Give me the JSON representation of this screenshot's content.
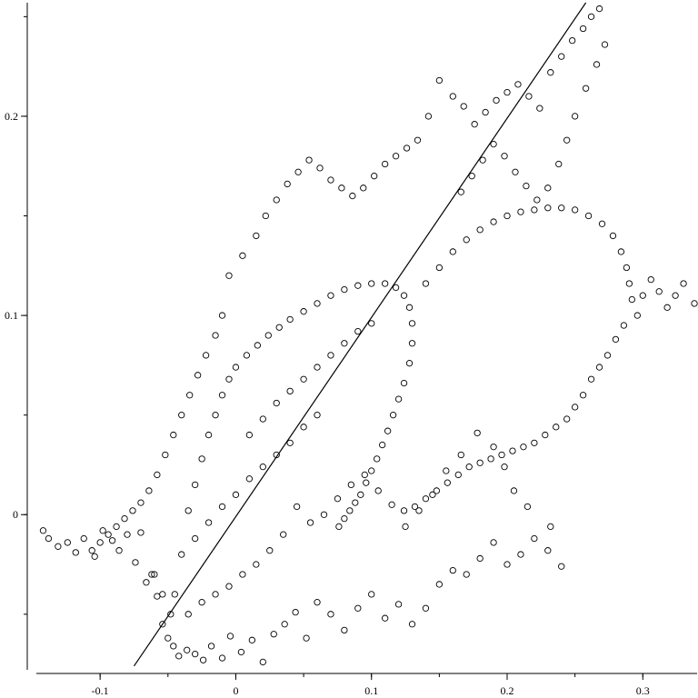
{
  "chart_data": {
    "type": "scatter",
    "title": "",
    "xlabel": "",
    "ylabel": "",
    "xlim": [
      -0.147,
      0.34
    ],
    "ylim": [
      -0.077,
      0.257
    ],
    "x_ticks": [
      {
        "value": -0.1,
        "label": "-0.1"
      },
      {
        "value": 0,
        "label": "0"
      },
      {
        "value": 0.1,
        "label": "0.1"
      },
      {
        "value": 0.2,
        "label": "0.2"
      },
      {
        "value": 0.3,
        "label": "0.3"
      }
    ],
    "y_ticks": [
      {
        "value": 0,
        "label": "0"
      },
      {
        "value": 0.1,
        "label": "0.1"
      },
      {
        "value": 0.2,
        "label": "0.2"
      }
    ],
    "minor_tick_step": 0.05,
    "grid": false,
    "legend": "none",
    "marker": "open-circle",
    "marker_color": "#000000",
    "points": [
      [
        -0.142,
        -0.008
      ],
      [
        -0.138,
        -0.012
      ],
      [
        -0.131,
        -0.016
      ],
      [
        -0.124,
        -0.014
      ],
      [
        -0.118,
        -0.019
      ],
      [
        -0.112,
        -0.012
      ],
      [
        -0.104,
        -0.021
      ],
      [
        -0.098,
        -0.008
      ],
      [
        -0.091,
        -0.013
      ],
      [
        -0.086,
        -0.018
      ],
      [
        -0.08,
        -0.01
      ],
      [
        -0.074,
        -0.024
      ],
      [
        -0.07,
        -0.009
      ],
      [
        -0.066,
        -0.034
      ],
      [
        -0.062,
        -0.03
      ],
      [
        -0.058,
        -0.041
      ],
      [
        -0.054,
        -0.055
      ],
      [
        -0.05,
        -0.062
      ],
      [
        -0.046,
        -0.066
      ],
      [
        -0.042,
        -0.071
      ],
      [
        -0.036,
        -0.068
      ],
      [
        -0.03,
        -0.07
      ],
      [
        -0.024,
        -0.073
      ],
      [
        -0.018,
        -0.066
      ],
      [
        -0.01,
        -0.072
      ],
      [
        -0.004,
        -0.061
      ],
      [
        0.004,
        -0.069
      ],
      [
        0.012,
        -0.063
      ],
      [
        0.02,
        -0.074
      ],
      [
        0.028,
        -0.06
      ],
      [
        0.036,
        -0.055
      ],
      [
        0.044,
        -0.049
      ],
      [
        0.052,
        -0.062
      ],
      [
        0.06,
        -0.044
      ],
      [
        0.07,
        -0.05
      ],
      [
        0.08,
        -0.058
      ],
      [
        0.09,
        -0.047
      ],
      [
        0.1,
        -0.04
      ],
      [
        0.11,
        -0.052
      ],
      [
        0.12,
        -0.045
      ],
      [
        0.13,
        -0.055
      ],
      [
        0.14,
        -0.047
      ],
      [
        0.15,
        -0.035
      ],
      [
        0.16,
        -0.028
      ],
      [
        0.17,
        -0.03
      ],
      [
        0.18,
        -0.022
      ],
      [
        0.19,
        -0.014
      ],
      [
        0.2,
        -0.025
      ],
      [
        0.21,
        -0.02
      ],
      [
        0.22,
        -0.012
      ],
      [
        0.23,
        -0.018
      ],
      [
        0.24,
        -0.026
      ],
      [
        0.232,
        -0.006
      ],
      [
        0.215,
        0.004
      ],
      [
        0.205,
        0.012
      ],
      [
        0.198,
        0.024
      ],
      [
        0.19,
        0.034
      ],
      [
        0.178,
        0.041
      ],
      [
        0.166,
        0.03
      ],
      [
        0.155,
        0.022
      ],
      [
        0.145,
        0.01
      ],
      [
        0.135,
        0.002
      ],
      [
        0.125,
        -0.006
      ],
      [
        0.115,
        0.005
      ],
      [
        0.105,
        0.012
      ],
      [
        0.095,
        0.02
      ],
      [
        0.085,
        0.015
      ],
      [
        0.075,
        0.008
      ],
      [
        0.065,
        0.0
      ],
      [
        0.055,
        -0.004
      ],
      [
        0.045,
        0.004
      ],
      [
        0.035,
        -0.01
      ],
      [
        0.025,
        -0.018
      ],
      [
        0.015,
        -0.025
      ],
      [
        0.005,
        -0.03
      ],
      [
        -0.005,
        -0.036
      ],
      [
        -0.015,
        -0.04
      ],
      [
        -0.025,
        -0.044
      ],
      [
        -0.035,
        -0.05
      ],
      [
        -0.045,
        -0.04
      ],
      [
        -0.04,
        -0.02
      ],
      [
        -0.035,
        0.002
      ],
      [
        -0.03,
        0.015
      ],
      [
        -0.025,
        0.028
      ],
      [
        -0.02,
        0.04
      ],
      [
        -0.015,
        0.05
      ],
      [
        -0.01,
        0.06
      ],
      [
        -0.005,
        0.068
      ],
      [
        0.0,
        0.074
      ],
      [
        0.008,
        0.08
      ],
      [
        0.016,
        0.085
      ],
      [
        0.024,
        0.09
      ],
      [
        0.032,
        0.094
      ],
      [
        0.04,
        0.098
      ],
      [
        0.05,
        0.102
      ],
      [
        0.06,
        0.106
      ],
      [
        0.07,
        0.11
      ],
      [
        0.08,
        0.113
      ],
      [
        0.09,
        0.115
      ],
      [
        0.1,
        0.116
      ],
      [
        0.11,
        0.116
      ],
      [
        0.118,
        0.114
      ],
      [
        0.124,
        0.11
      ],
      [
        0.128,
        0.104
      ],
      [
        0.13,
        0.096
      ],
      [
        0.13,
        0.086
      ],
      [
        0.128,
        0.076
      ],
      [
        0.124,
        0.066
      ],
      [
        0.12,
        0.058
      ],
      [
        0.116,
        0.05
      ],
      [
        0.112,
        0.042
      ],
      [
        0.108,
        0.035
      ],
      [
        0.104,
        0.028
      ],
      [
        0.1,
        0.022
      ],
      [
        0.096,
        0.016
      ],
      [
        0.092,
        0.01
      ],
      [
        0.088,
        0.006
      ],
      [
        0.084,
        0.002
      ],
      [
        0.08,
        -0.002
      ],
      [
        0.076,
        -0.006
      ],
      [
        0.14,
        0.116
      ],
      [
        0.15,
        0.124
      ],
      [
        0.16,
        0.132
      ],
      [
        0.17,
        0.138
      ],
      [
        0.18,
        0.143
      ],
      [
        0.19,
        0.147
      ],
      [
        0.2,
        0.15
      ],
      [
        0.21,
        0.152
      ],
      [
        0.22,
        0.153
      ],
      [
        0.23,
        0.154
      ],
      [
        0.24,
        0.154
      ],
      [
        0.25,
        0.153
      ],
      [
        0.26,
        0.15
      ],
      [
        0.27,
        0.146
      ],
      [
        0.278,
        0.14
      ],
      [
        0.284,
        0.132
      ],
      [
        0.288,
        0.124
      ],
      [
        0.29,
        0.116
      ],
      [
        0.292,
        0.108
      ],
      [
        0.296,
        0.1
      ],
      [
        0.3,
        0.11
      ],
      [
        0.306,
        0.118
      ],
      [
        0.312,
        0.112
      ],
      [
        0.318,
        0.104
      ],
      [
        0.324,
        0.11
      ],
      [
        0.33,
        0.116
      ],
      [
        0.338,
        0.106
      ],
      [
        0.286,
        0.095
      ],
      [
        0.28,
        0.088
      ],
      [
        0.274,
        0.08
      ],
      [
        0.268,
        0.074
      ],
      [
        0.262,
        0.068
      ],
      [
        0.256,
        0.06
      ],
      [
        0.25,
        0.054
      ],
      [
        0.244,
        0.048
      ],
      [
        0.236,
        0.044
      ],
      [
        0.228,
        0.04
      ],
      [
        0.22,
        0.036
      ],
      [
        0.212,
        0.034
      ],
      [
        0.204,
        0.032
      ],
      [
        0.196,
        0.03
      ],
      [
        0.188,
        0.028
      ],
      [
        0.18,
        0.026
      ],
      [
        0.172,
        0.024
      ],
      [
        0.164,
        0.02
      ],
      [
        0.156,
        0.016
      ],
      [
        0.148,
        0.012
      ],
      [
        0.14,
        0.008
      ],
      [
        0.132,
        0.004
      ],
      [
        0.124,
        0.002
      ],
      [
        -0.005,
        0.12
      ],
      [
        0.005,
        0.13
      ],
      [
        0.015,
        0.14
      ],
      [
        0.022,
        0.15
      ],
      [
        0.03,
        0.158
      ],
      [
        0.038,
        0.166
      ],
      [
        0.046,
        0.172
      ],
      [
        0.054,
        0.178
      ],
      [
        0.062,
        0.174
      ],
      [
        0.07,
        0.168
      ],
      [
        0.078,
        0.164
      ],
      [
        0.086,
        0.16
      ],
      [
        0.094,
        0.164
      ],
      [
        0.102,
        0.17
      ],
      [
        0.11,
        0.176
      ],
      [
        0.118,
        0.18
      ],
      [
        0.126,
        0.184
      ],
      [
        0.134,
        0.188
      ],
      [
        0.142,
        0.2
      ],
      [
        0.15,
        0.218
      ],
      [
        0.16,
        0.21
      ],
      [
        0.168,
        0.205
      ],
      [
        0.176,
        0.196
      ],
      [
        0.184,
        0.202
      ],
      [
        0.192,
        0.208
      ],
      [
        0.2,
        0.212
      ],
      [
        0.208,
        0.216
      ],
      [
        0.216,
        0.21
      ],
      [
        0.224,
        0.204
      ],
      [
        0.232,
        0.222
      ],
      [
        0.24,
        0.23
      ],
      [
        0.248,
        0.238
      ],
      [
        0.256,
        0.244
      ],
      [
        0.262,
        0.25
      ],
      [
        0.268,
        0.254
      ],
      [
        0.272,
        0.236
      ],
      [
        0.266,
        0.226
      ],
      [
        0.258,
        0.214
      ],
      [
        0.25,
        0.2
      ],
      [
        0.244,
        0.188
      ],
      [
        0.238,
        0.176
      ],
      [
        0.23,
        0.164
      ],
      [
        0.222,
        0.158
      ],
      [
        0.214,
        0.165
      ],
      [
        0.206,
        0.172
      ],
      [
        0.198,
        0.18
      ],
      [
        0.19,
        0.186
      ],
      [
        0.182,
        0.178
      ],
      [
        0.174,
        0.17
      ],
      [
        0.166,
        0.162
      ],
      [
        -0.01,
        0.1
      ],
      [
        -0.015,
        0.09
      ],
      [
        -0.022,
        0.08
      ],
      [
        -0.028,
        0.07
      ],
      [
        -0.034,
        0.06
      ],
      [
        -0.04,
        0.05
      ],
      [
        -0.046,
        0.04
      ],
      [
        -0.052,
        0.03
      ],
      [
        -0.058,
        0.02
      ],
      [
        -0.064,
        0.012
      ],
      [
        -0.07,
        0.006
      ],
      [
        -0.076,
        0.002
      ],
      [
        -0.082,
        -0.002
      ],
      [
        -0.088,
        -0.006
      ],
      [
        -0.094,
        -0.01
      ],
      [
        -0.1,
        -0.014
      ],
      [
        -0.106,
        -0.018
      ],
      [
        -0.06,
        -0.03
      ],
      [
        -0.054,
        -0.04
      ],
      [
        -0.048,
        -0.05
      ],
      [
        0.01,
        0.04
      ],
      [
        0.02,
        0.048
      ],
      [
        0.03,
        0.056
      ],
      [
        0.04,
        0.062
      ],
      [
        0.05,
        0.068
      ],
      [
        0.06,
        0.074
      ],
      [
        0.07,
        0.08
      ],
      [
        0.08,
        0.086
      ],
      [
        0.09,
        0.092
      ],
      [
        0.1,
        0.096
      ],
      [
        0.0,
        0.01
      ],
      [
        0.01,
        0.018
      ],
      [
        0.02,
        0.024
      ],
      [
        0.03,
        0.03
      ],
      [
        0.04,
        0.036
      ],
      [
        -0.01,
        0.004
      ],
      [
        -0.02,
        -0.004
      ],
      [
        -0.03,
        -0.012
      ],
      [
        0.05,
        0.044
      ],
      [
        0.06,
        0.05
      ]
    ],
    "fit_line": [
      [
        -0.075,
        -0.076
      ],
      [
        0.258,
        0.257
      ]
    ]
  }
}
